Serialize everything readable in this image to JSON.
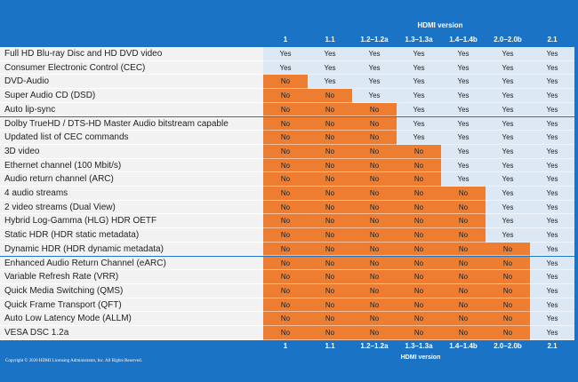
{
  "header": {
    "title": "HDMI version",
    "columns": [
      "1",
      "1.1",
      "1.2–1.2a",
      "1.3–1.3a",
      "1.4–1.4b",
      "2.0–2.0b",
      "2.1"
    ]
  },
  "rows": [
    {
      "feature": "Full HD Blu-ray Disc and HD DVD video",
      "values": [
        "Yes",
        "Yes",
        "Yes",
        "Yes",
        "Yes",
        "Yes",
        "Yes"
      ]
    },
    {
      "feature": "Consumer Electronic Control (CEC)",
      "values": [
        "Yes",
        "Yes",
        "Yes",
        "Yes",
        "Yes",
        "Yes",
        "Yes"
      ]
    },
    {
      "feature": "DVD-Audio",
      "values": [
        "No",
        "Yes",
        "Yes",
        "Yes",
        "Yes",
        "Yes",
        "Yes"
      ]
    },
    {
      "feature": "Super Audio CD (DSD)",
      "values": [
        "No",
        "No",
        "Yes",
        "Yes",
        "Yes",
        "Yes",
        "Yes"
      ]
    },
    {
      "feature": "Auto lip-sync",
      "values": [
        "No",
        "No",
        "No",
        "Yes",
        "Yes",
        "Yes",
        "Yes"
      ]
    },
    {
      "feature": "Dolby TrueHD / DTS-HD Master Audio bitstream capable",
      "values": [
        "No",
        "No",
        "No",
        "Yes",
        "Yes",
        "Yes",
        "Yes"
      ]
    },
    {
      "feature": "Updated list of CEC commands",
      "values": [
        "No",
        "No",
        "No",
        "Yes",
        "Yes",
        "Yes",
        "Yes"
      ]
    },
    {
      "feature": "3D video",
      "values": [
        "No",
        "No",
        "No",
        "No",
        "Yes",
        "Yes",
        "Yes"
      ]
    },
    {
      "feature": "Ethernet channel (100 Mbit/s)",
      "values": [
        "No",
        "No",
        "No",
        "No",
        "Yes",
        "Yes",
        "Yes"
      ]
    },
    {
      "feature": "Audio return channel (ARC)",
      "values": [
        "No",
        "No",
        "No",
        "No",
        "Yes",
        "Yes",
        "Yes"
      ]
    },
    {
      "feature": "4 audio streams",
      "values": [
        "No",
        "No",
        "No",
        "No",
        "No",
        "Yes",
        "Yes"
      ]
    },
    {
      "feature": "2 video streams (Dual View)",
      "values": [
        "No",
        "No",
        "No",
        "No",
        "No",
        "Yes",
        "Yes"
      ]
    },
    {
      "feature": "Hybrid Log-Gamma (HLG) HDR OETF",
      "values": [
        "No",
        "No",
        "No",
        "No",
        "No",
        "Yes",
        "Yes"
      ]
    },
    {
      "feature": "Static HDR (HDR static metadata)",
      "values": [
        "No",
        "No",
        "No",
        "No",
        "No",
        "Yes",
        "Yes"
      ]
    },
    {
      "feature": "Dynamic HDR (HDR dynamic metadata)",
      "values": [
        "No",
        "No",
        "No",
        "No",
        "No",
        "No",
        "Yes"
      ]
    },
    {
      "feature": "Enhanced Audio Return Channel (eARC)",
      "values": [
        "No",
        "No",
        "No",
        "No",
        "No",
        "No",
        "Yes"
      ]
    },
    {
      "feature": "Variable Refresh Rate (VRR)",
      "values": [
        "No",
        "No",
        "No",
        "No",
        "No",
        "No",
        "Yes"
      ]
    },
    {
      "feature": "Quick Media Switching (QMS)",
      "values": [
        "No",
        "No",
        "No",
        "No",
        "No",
        "No",
        "Yes"
      ]
    },
    {
      "feature": "Quick Frame Transport (QFT)",
      "values": [
        "No",
        "No",
        "No",
        "No",
        "No",
        "No",
        "Yes"
      ]
    },
    {
      "feature": "Auto Low Latency Mode (ALLM)",
      "values": [
        "No",
        "No",
        "No",
        "No",
        "No",
        "No",
        "Yes"
      ]
    },
    {
      "feature": "VESA DSC 1.2a",
      "values": [
        "No",
        "No",
        "No",
        "No",
        "No",
        "No",
        "Yes"
      ]
    }
  ],
  "footer": {
    "columns": [
      "1",
      "1.1",
      "1.2–1.2a",
      "1.3–1.3a",
      "1.4–1.4b",
      "2.0–2.0b",
      "2.1"
    ],
    "title": "HDMI version",
    "copyright": "Copyright © 2020 HDMI Licensing Administrator, Inc. All Rights Reserved."
  }
}
